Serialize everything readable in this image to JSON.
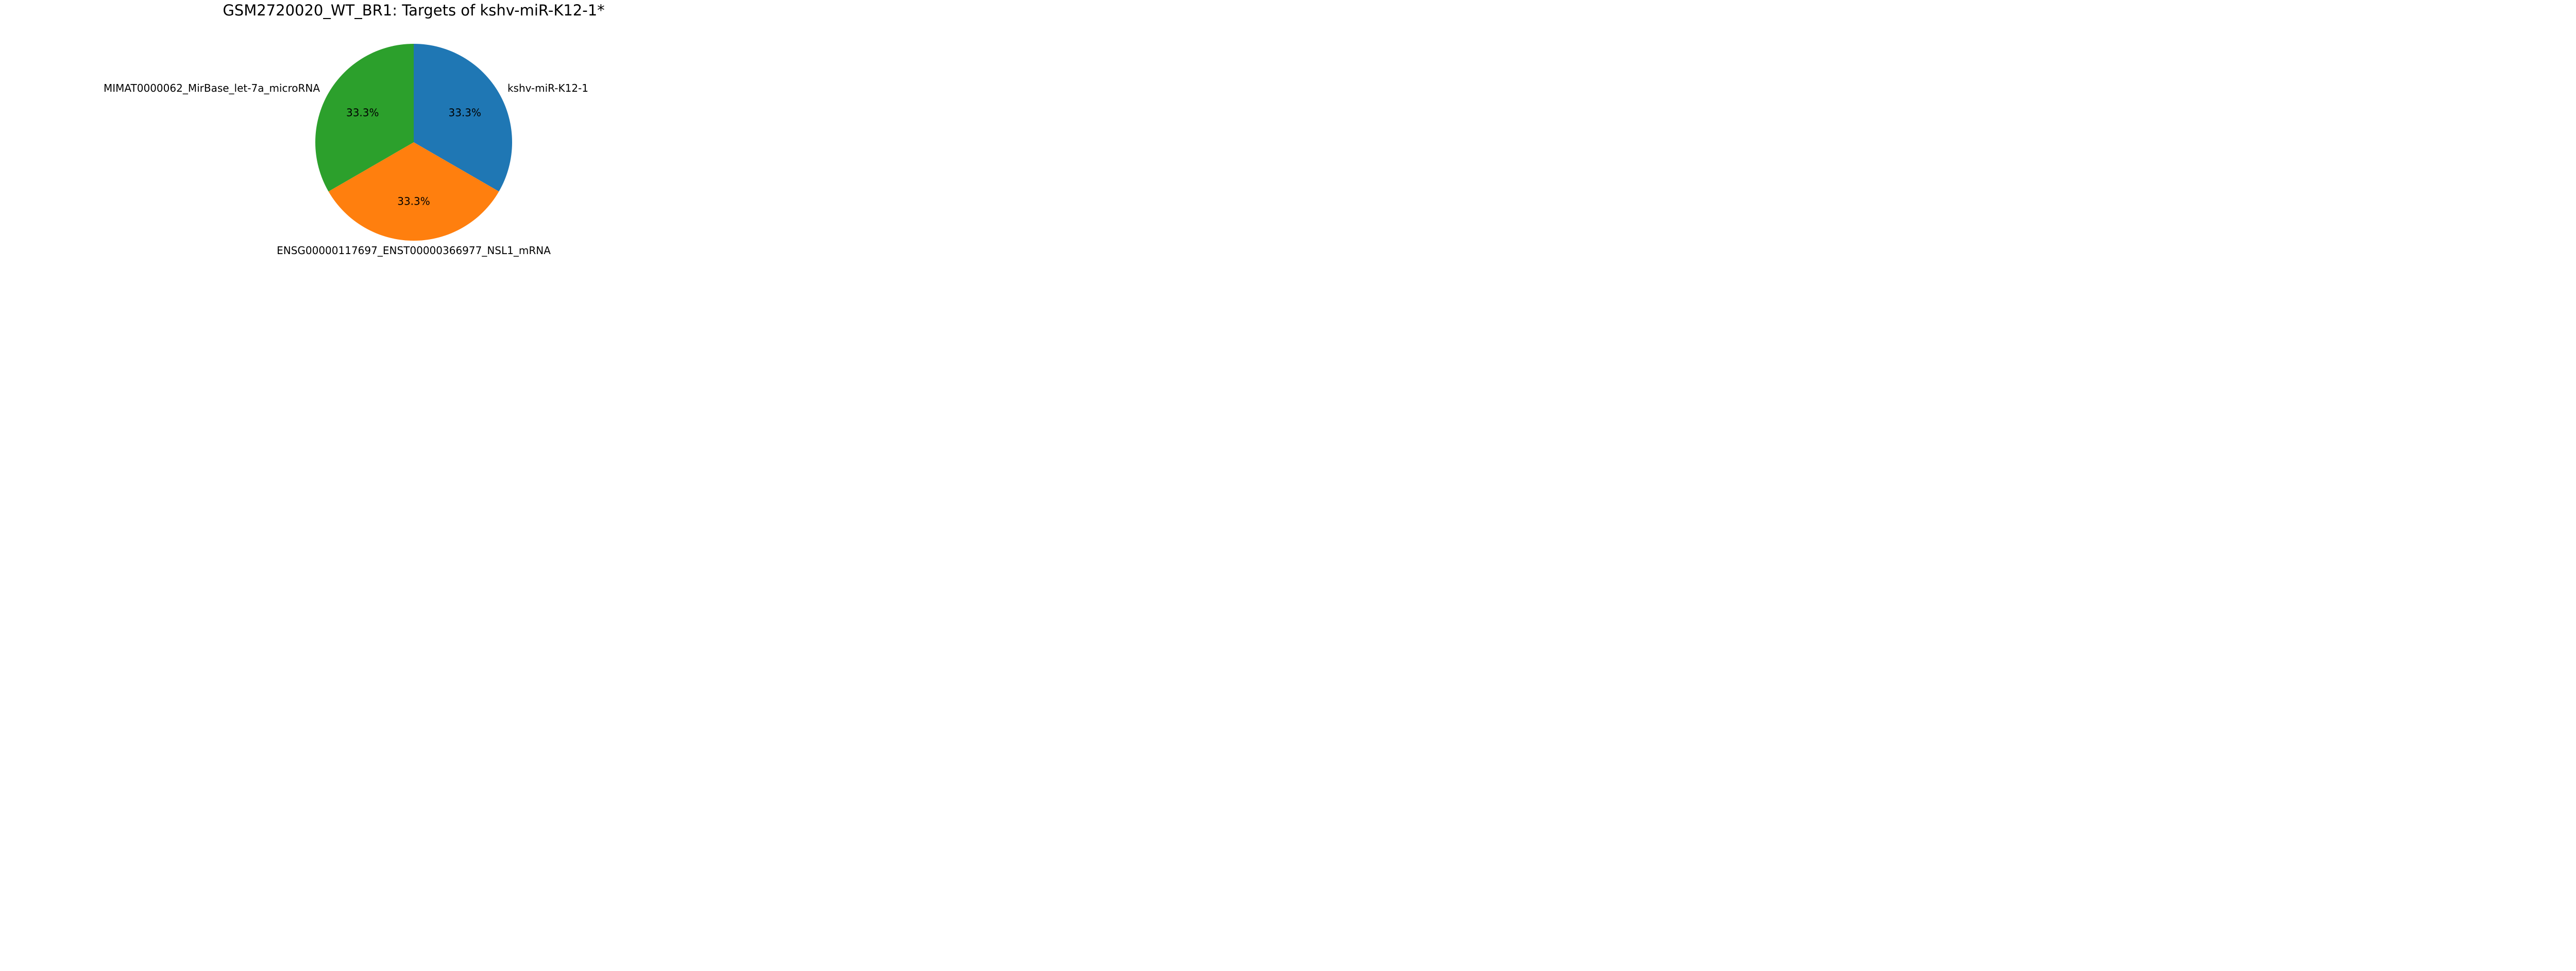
{
  "chart_data": {
    "type": "pie",
    "title": "GSM2720020_WT_BR1: Targets of kshv-miR-K12-1*",
    "start_angle_deg": 90,
    "direction": "clockwise",
    "slices": [
      {
        "label": "kshv-miR-K12-1",
        "value": 1,
        "percent_label": "33.3%",
        "color": "#1f77b4"
      },
      {
        "label": "ENSG00000117697_ENST00000366977_NSL1_mRNA",
        "value": 1,
        "percent_label": "33.3%",
        "color": "#ff7f0e"
      },
      {
        "label": "MIMAT0000062_MirBase_let-7a_microRNA",
        "value": 1,
        "percent_label": "33.3%",
        "color": "#2ca02c"
      }
    ]
  }
}
